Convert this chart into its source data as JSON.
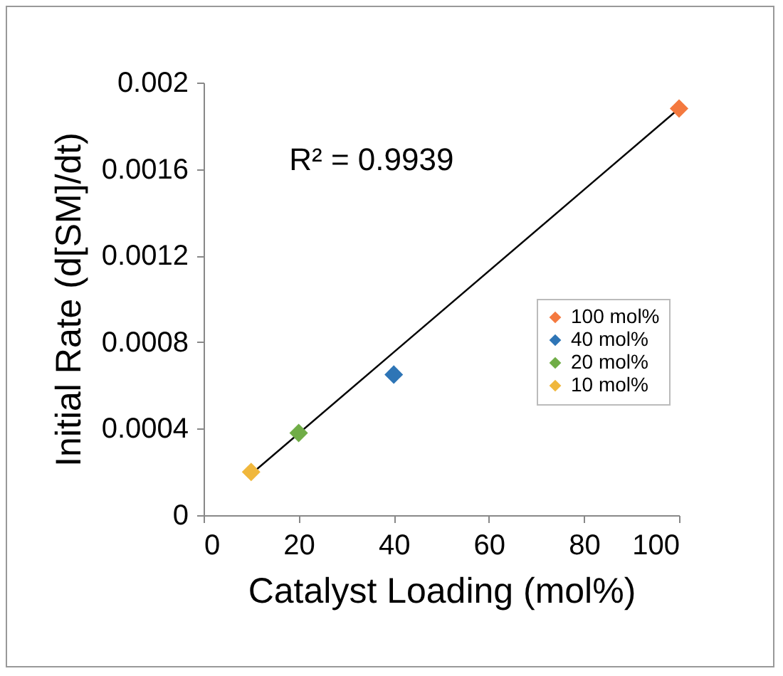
{
  "chart_data": {
    "type": "scatter",
    "xlabel": "Catalyst Loading (mol%)",
    "ylabel": "Initial Rate (d[SM]/dt)",
    "annotations": [
      "R² = 0.9939"
    ],
    "series": [
      {
        "name": "100 mol%",
        "color": "#f4793f",
        "marker": "diamond",
        "x": [
          100
        ],
        "values": [
          0.00188
        ]
      },
      {
        "name": "40 mol%",
        "color": "#2e75b6",
        "marker": "diamond",
        "x": [
          40
        ],
        "values": [
          0.00065
        ]
      },
      {
        "name": "20 mol%",
        "color": "#70ad47",
        "marker": "diamond",
        "x": [
          20
        ],
        "values": [
          0.00038
        ]
      },
      {
        "name": "10 mol%",
        "color": "#f0b73c",
        "marker": "diamond",
        "x": [
          10
        ],
        "values": [
          0.0002
        ]
      },
      {
        "type": "line",
        "color": "#000000",
        "x": [
          10,
          100
        ],
        "values": [
          0.00019,
          0.00188
        ]
      }
    ],
    "xlim": [
      0,
      100
    ],
    "xticks": [
      0,
      20,
      40,
      60,
      80,
      100
    ],
    "ylim": [
      0,
      0.002
    ],
    "yticks": [
      0,
      0.0004,
      0.0008,
      0.0012,
      0.0016,
      0.002
    ],
    "grid": false,
    "legend": "right"
  }
}
